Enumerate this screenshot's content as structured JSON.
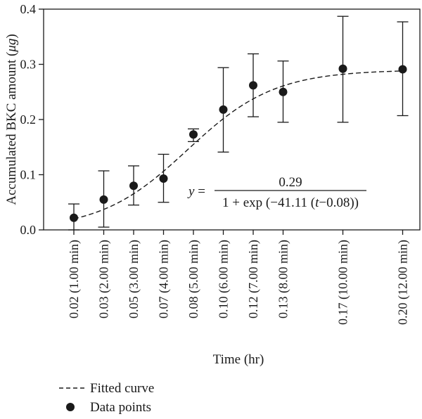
{
  "chart_data": {
    "type": "scatter",
    "ylabel_main": "Accumulated BKC amount (",
    "ylabel_unit": "μg",
    "ylabel_close": ")",
    "xlabel": "Time (hr)",
    "ylim": [
      0,
      0.4
    ],
    "y_ticks": [
      "0.0",
      "0.1",
      "0.2",
      "0.3",
      "0.4"
    ],
    "x_ticks": [
      {
        "t": 1,
        "label": "0.02 (1.00 min)"
      },
      {
        "t": 2,
        "label": "0.03 (2.00 min)"
      },
      {
        "t": 3,
        "label": "0.05 (3.00 min)"
      },
      {
        "t": 4,
        "label": "0.07 (4.00 min)"
      },
      {
        "t": 5,
        "label": "0.08 (5.00 min)"
      },
      {
        "t": 6,
        "label": "0.10 (6.00 min)"
      },
      {
        "t": 7,
        "label": "0.12 (7.00 min)"
      },
      {
        "t": 8,
        "label": "0.13 (8.00 min)"
      },
      {
        "t": 10,
        "label": "0.17 (10.00 min)"
      },
      {
        "t": 12,
        "label": "0.20 (12.00 min)"
      }
    ],
    "points": [
      {
        "t": 1,
        "y": 0.022,
        "low": 0.0,
        "high": 0.047
      },
      {
        "t": 2,
        "y": 0.055,
        "low": 0.005,
        "high": 0.107
      },
      {
        "t": 3,
        "y": 0.08,
        "low": 0.045,
        "high": 0.116
      },
      {
        "t": 4,
        "y": 0.093,
        "low": 0.05,
        "high": 0.137
      },
      {
        "t": 5,
        "y": 0.173,
        "low": 0.16,
        "high": 0.183
      },
      {
        "t": 6,
        "y": 0.218,
        "low": 0.141,
        "high": 0.294
      },
      {
        "t": 7,
        "y": 0.262,
        "low": 0.205,
        "high": 0.319
      },
      {
        "t": 8,
        "y": 0.25,
        "low": 0.195,
        "high": 0.306
      },
      {
        "t": 10,
        "y": 0.292,
        "low": 0.195,
        "high": 0.387
      },
      {
        "t": 12,
        "y": 0.291,
        "low": 0.207,
        "high": 0.377
      }
    ],
    "fit": {
      "a": 0.29,
      "k": -41.11,
      "t0": 0.08
    },
    "equation": {
      "lhs_var": "y",
      "lhs_eq": " = ",
      "numerator": "0.29",
      "denom_prefix": "1 + exp (−41.11 (",
      "denom_var": "t",
      "denom_suffix": "−0.08))"
    },
    "legend": [
      {
        "key": "fit",
        "label": "Fitted curve"
      },
      {
        "key": "points",
        "label": "Data points"
      }
    ]
  }
}
